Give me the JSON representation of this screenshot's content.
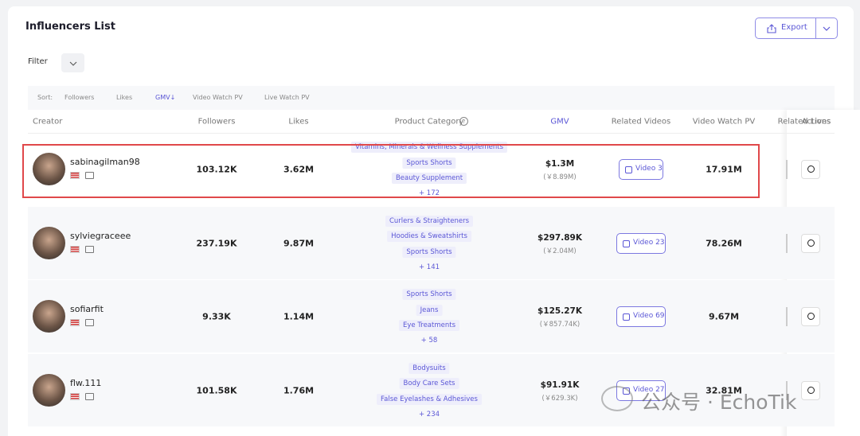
{
  "header": {
    "title": "Influencers List",
    "export": "Export"
  },
  "filter": {
    "label": "Filter"
  },
  "sort": {
    "label": "Sort:",
    "options": [
      "Followers",
      "Likes",
      "GMV↓",
      "Video Watch PV",
      "Live Watch PV"
    ]
  },
  "table": {
    "columns": [
      "Creator",
      "Followers",
      "Likes",
      "Product Category",
      "GMV",
      "Related Videos",
      "Video Watch PV",
      "Related Lives",
      "Actions"
    ],
    "rows": [
      {
        "name": "sabinagilman98",
        "followers": "103.12K",
        "likes": "3.62M",
        "categories": [
          "Vitamins, Minerals & Wellness Supplements",
          "Sports Shorts",
          "Beauty Supplement"
        ],
        "more": "+ 172",
        "gmv": "$1.3M",
        "gmv_cny": "(￥8.89M)",
        "video": "Video 3",
        "watch_pv": "17.91M"
      },
      {
        "name": "sylviegraceee",
        "followers": "237.19K",
        "likes": "9.87M",
        "categories": [
          "Curlers & Straighteners",
          "Hoodies & Sweatshirts",
          "Sports Shorts"
        ],
        "more": "+ 141",
        "gmv": "$297.89K",
        "gmv_cny": "(￥2.04M)",
        "video": "Video 23",
        "watch_pv": "78.26M"
      },
      {
        "name": "sofiarfit",
        "followers": "9.33K",
        "likes": "1.14M",
        "categories": [
          "Sports Shorts",
          "Jeans",
          "Eye Treatments"
        ],
        "more": "+ 58",
        "gmv": "$125.27K",
        "gmv_cny": "(￥857.74K)",
        "video": "Video 69",
        "watch_pv": "9.67M"
      },
      {
        "name": "flw.111",
        "followers": "101.58K",
        "likes": "1.76M",
        "categories": [
          "Bodysuits",
          "Body Care Sets",
          "False Eyelashes & Adhesives"
        ],
        "more": "+ 234",
        "gmv": "$91.91K",
        "gmv_cny": "(￥629.3K)",
        "video": "Video 27",
        "watch_pv": "32.81M"
      }
    ]
  },
  "watermark": "公众号 · EchoTik"
}
